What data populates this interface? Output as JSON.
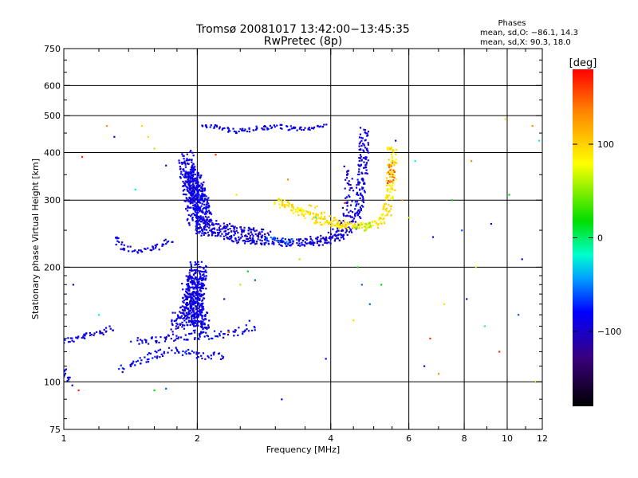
{
  "chart_data": {
    "type": "scatter",
    "title": "Tromsø 20081017 13:42:00−13:45:35",
    "subtitle": "RwPretec (8p)",
    "xlabel": "Frequency [MHz]",
    "ylabel": "Stationary phase Virtual Height [km]",
    "x_scale": "log",
    "y_scale": "log",
    "xlim": [
      1,
      12
    ],
    "ylim": [
      75,
      750
    ],
    "x_ticks": [
      "1",
      "2",
      "4",
      "6",
      "8",
      "10",
      "12"
    ],
    "y_ticks": [
      "75",
      "100",
      "200",
      "300",
      "400",
      "500",
      "600",
      "750"
    ],
    "grid": true,
    "stats": {
      "heading": "Phases",
      "line1": "mean, sd,O: −86.1, 14.3",
      "line2": "mean, sd,X:  90.3, 18.0"
    },
    "colorbar": {
      "label": "[deg]",
      "range": [
        -180,
        180
      ],
      "ticks": [
        "100",
        "0",
        "−100"
      ],
      "tick_values": [
        100,
        0,
        -100
      ]
    },
    "series": [
      {
        "color_phase": -90,
        "spread": 0.015,
        "count": 1,
        "points": [
          [
            1.0,
            128
          ],
          [
            1.1,
            131
          ],
          [
            1.2,
            135
          ],
          [
            1.3,
            139
          ]
        ]
      },
      {
        "color_phase": -88,
        "spread": 0.015,
        "count": 1,
        "points": [
          [
            1.0,
            108
          ],
          [
            1.02,
            102
          ],
          [
            1.04,
            98
          ]
        ]
      },
      {
        "color_phase": -85,
        "spread": 0.02,
        "count": 1,
        "points": [
          [
            1.35,
            108
          ],
          [
            1.45,
            112
          ],
          [
            1.55,
            116
          ],
          [
            1.65,
            119
          ],
          [
            1.75,
            121
          ],
          [
            1.85,
            120
          ],
          [
            1.95,
            118
          ],
          [
            2.1,
            117
          ],
          [
            2.3,
            116
          ]
        ]
      },
      {
        "color_phase": -88,
        "spread": 0.02,
        "count": 1,
        "points": [
          [
            1.45,
            128
          ],
          [
            1.55,
            129
          ],
          [
            1.7,
            130
          ],
          [
            1.85,
            131
          ],
          [
            2.0,
            132
          ],
          [
            2.2,
            133
          ],
          [
            2.4,
            134
          ],
          [
            2.6,
            137
          ],
          [
            2.7,
            142
          ]
        ]
      },
      {
        "color_phase": -90,
        "spread": 0.04,
        "count": 4,
        "points": [
          [
            1.8,
            140
          ],
          [
            1.9,
            150
          ],
          [
            1.95,
            165
          ],
          [
            2.0,
            180
          ],
          [
            2.0,
            200
          ],
          [
            1.95,
            145
          ],
          [
            2.05,
            140
          ],
          [
            1.92,
            175
          ]
        ]
      },
      {
        "color_phase": -92,
        "spread": 0.015,
        "count": 1,
        "points": [
          [
            1.3,
            240
          ],
          [
            1.35,
            228
          ],
          [
            1.45,
            222
          ],
          [
            1.55,
            222
          ],
          [
            1.62,
            226
          ],
          [
            1.7,
            233
          ],
          [
            1.75,
            238
          ]
        ]
      },
      {
        "color_phase": -90,
        "spread": 0.035,
        "count": 4,
        "points": [
          [
            1.88,
            395
          ],
          [
            1.9,
            360
          ],
          [
            1.92,
            330
          ],
          [
            1.95,
            300
          ],
          [
            1.97,
            280
          ],
          [
            2.0,
            265
          ],
          [
            2.05,
            255
          ],
          [
            2.1,
            250
          ],
          [
            2.0,
            320
          ],
          [
            1.93,
            350
          ],
          [
            2.05,
            290
          ]
        ]
      },
      {
        "color_phase": -92,
        "spread": 0.02,
        "count": 2,
        "points": [
          [
            2.1,
            248
          ],
          [
            2.3,
            242
          ],
          [
            2.5,
            237
          ],
          [
            2.7,
            235
          ],
          [
            2.9,
            234
          ],
          [
            3.1,
            233
          ],
          [
            3.3,
            232
          ],
          [
            3.5,
            232
          ],
          [
            3.8,
            233
          ],
          [
            4.0,
            236
          ],
          [
            4.2,
            240
          ],
          [
            4.4,
            250
          ],
          [
            4.6,
            275
          ],
          [
            4.7,
            330
          ],
          [
            4.75,
            400
          ],
          [
            4.75,
            460
          ]
        ]
      },
      {
        "color_phase": -60,
        "spread": 0.015,
        "count": 1,
        "points": [
          [
            2.9,
            240
          ],
          [
            3.1,
            236
          ],
          [
            3.3,
            234
          ]
        ]
      },
      {
        "color_phase": -95,
        "spread": 0.02,
        "count": 2,
        "points": [
          [
            2.1,
            262
          ],
          [
            2.3,
            255
          ],
          [
            2.6,
            248
          ],
          [
            2.9,
            246
          ]
        ]
      },
      {
        "color_phase": -100,
        "spread": 0.02,
        "count": 1,
        "points": [
          [
            3.6,
            235
          ],
          [
            3.8,
            238
          ],
          [
            4.0,
            243
          ],
          [
            4.2,
            252
          ],
          [
            4.3,
            265
          ],
          [
            4.35,
            285
          ],
          [
            4.4,
            310
          ],
          [
            4.38,
            340
          ],
          [
            4.32,
            368
          ]
        ]
      },
      {
        "color_phase": -88,
        "spread": 0.01,
        "count": 1,
        "points": [
          [
            2.05,
            470
          ],
          [
            2.15,
            472
          ],
          [
            2.3,
            462
          ],
          [
            2.45,
            455
          ],
          [
            2.6,
            458
          ],
          [
            2.75,
            465
          ],
          [
            2.9,
            465
          ],
          [
            3.1,
            468
          ],
          [
            3.3,
            462
          ],
          [
            3.5,
            460
          ],
          [
            3.7,
            465
          ],
          [
            3.9,
            470
          ]
        ]
      },
      {
        "color_phase": 92,
        "spread": 0.02,
        "count": 2,
        "points": [
          [
            3.0,
            300
          ],
          [
            3.2,
            290
          ],
          [
            3.4,
            282
          ],
          [
            3.6,
            272
          ],
          [
            3.8,
            265
          ],
          [
            4.0,
            262
          ],
          [
            4.2,
            258
          ],
          [
            4.4,
            256
          ],
          [
            4.6,
            255
          ],
          [
            4.8,
            255
          ],
          [
            5.0,
            258
          ],
          [
            5.2,
            265
          ],
          [
            5.35,
            280
          ],
          [
            5.45,
            310
          ],
          [
            5.5,
            360
          ],
          [
            5.5,
            420
          ]
        ]
      },
      {
        "color_phase": 95,
        "spread": 0.02,
        "count": 1,
        "points": [
          [
            3.6,
            285
          ],
          [
            3.8,
            275
          ],
          [
            4.0,
            268
          ],
          [
            4.2,
            262
          ],
          [
            4.4,
            258
          ]
        ]
      },
      {
        "color_phase": 60,
        "spread": 0.015,
        "count": 1,
        "points": [
          [
            4.6,
            252
          ],
          [
            4.8,
            256
          ],
          [
            5.0,
            260
          ]
        ]
      },
      {
        "color_phase": 150,
        "spread": 0.015,
        "count": 1,
        "points": [
          [
            5.45,
            330
          ],
          [
            5.5,
            380
          ]
        ]
      },
      {
        "color_phase": 0,
        "spread": 0.0,
        "count": 1,
        "points": [
          [
            1.25,
            470
          ],
          [
            1.6,
            410
          ],
          [
            1.45,
            320
          ],
          [
            1.7,
            370
          ],
          [
            2.2,
            395
          ],
          [
            2.45,
            310
          ],
          [
            2.6,
            195
          ],
          [
            2.7,
            185
          ],
          [
            3.1,
            90
          ],
          [
            3.2,
            340
          ],
          [
            3.4,
            210
          ],
          [
            3.7,
            270
          ],
          [
            3.9,
            115
          ],
          [
            4.3,
            295
          ],
          [
            4.5,
            145
          ],
          [
            4.6,
            200
          ],
          [
            4.7,
            180
          ],
          [
            5.6,
            430
          ],
          [
            5.8,
            300
          ],
          [
            6.0,
            270
          ],
          [
            6.2,
            380
          ],
          [
            6.5,
            110
          ],
          [
            6.7,
            130
          ],
          [
            7.2,
            160
          ],
          [
            7.5,
            300
          ],
          [
            7.9,
            250
          ],
          [
            8.1,
            165
          ],
          [
            8.3,
            380
          ],
          [
            8.5,
            200
          ],
          [
            8.9,
            140
          ],
          [
            9.2,
            260
          ],
          [
            9.6,
            120
          ],
          [
            9.9,
            490
          ],
          [
            10.1,
            310
          ],
          [
            10.6,
            150
          ],
          [
            10.8,
            210
          ],
          [
            11.4,
            470
          ],
          [
            11.6,
            100
          ],
          [
            11.8,
            430
          ],
          [
            1.05,
            180
          ],
          [
            1.08,
            95
          ],
          [
            1.5,
            470
          ],
          [
            1.6,
            95
          ],
          [
            1.7,
            96
          ],
          [
            2.3,
            165
          ],
          [
            2.35,
            135
          ],
          [
            2.5,
            180
          ],
          [
            1.2,
            150
          ],
          [
            1.3,
            440
          ],
          [
            1.1,
            390
          ],
          [
            1.55,
            440
          ],
          [
            5.2,
            180
          ],
          [
            4.9,
            160
          ],
          [
            6.8,
            240
          ],
          [
            7.0,
            105
          ]
        ]
      }
    ]
  }
}
